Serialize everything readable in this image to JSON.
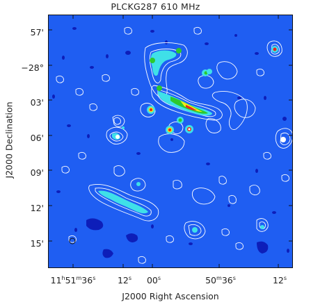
{
  "title": "PLCKG287 610 MHz",
  "x_axis": {
    "label": "J2000 Right Ascension",
    "ticks": [
      {
        "main": "11",
        "u1": "h",
        "m": "51",
        "u2": "m",
        "s": "36",
        "u3": "s"
      },
      {
        "main": "12",
        "u3": "s"
      },
      {
        "main": "00",
        "u3": "s"
      },
      {
        "main": "50",
        "u2": "m",
        "s": "36",
        "u3": "s"
      },
      {
        "main": "12",
        "u3": "s"
      }
    ]
  },
  "y_axis": {
    "label": "J2000 Declination",
    "ticks": [
      "57'",
      "−28°",
      "03'",
      "06'",
      "09'",
      "12'",
      "15'"
    ]
  },
  "colors": {
    "background": "#1f5ef2",
    "contour": "#ffffff",
    "negative": "#0a14b0",
    "cyan": "#3fe0e8",
    "green": "#2dc92d",
    "yellow": "#f2ea1a",
    "red": "#e8281c"
  }
}
